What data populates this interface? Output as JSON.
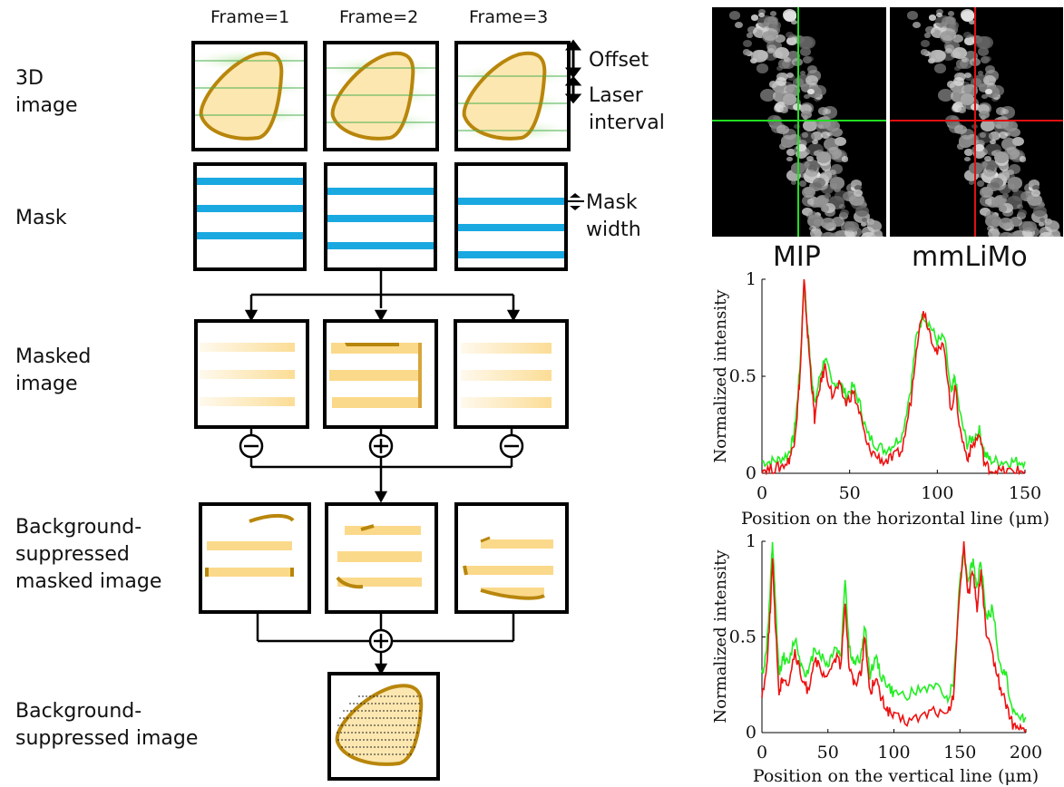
{
  "frames": [
    "Frame=1",
    "Frame=2",
    "Frame=3"
  ],
  "rows": {
    "image3d": [
      "3D",
      "image"
    ],
    "mask": "Mask",
    "masked": [
      "Masked",
      "image"
    ],
    "bgsup_masked": [
      "Background-",
      "suppressed",
      "masked image"
    ],
    "bgsup": [
      "Background-",
      "suppressed image"
    ]
  },
  "annotations": {
    "offset": "Offset",
    "laser": [
      "Laser",
      "interval"
    ],
    "maskwidth": [
      "Mask",
      "width"
    ]
  },
  "operators": [
    "minus",
    "plus",
    "minus",
    "plus"
  ],
  "micrographs": [
    {
      "label": "MIP",
      "crosshair_color": "#22dd22"
    },
    {
      "label": "mmLiMo",
      "crosshair_color": "#e01010"
    }
  ],
  "colors": {
    "mip": "#22ee22",
    "mmlimo": "#ee1111",
    "mask": "#1aa8e0",
    "shape_edge": "#b8860b",
    "shape_fill": "#fbd98a"
  },
  "chart_data": [
    {
      "type": "line",
      "xlabel": "Position on the horizontal line (μm)",
      "ylabel": "Normalized intensity",
      "xlim": [
        0,
        150
      ],
      "ylim": [
        0,
        1
      ],
      "xticks": [
        "0",
        "50",
        "100",
        "150"
      ],
      "yticks": [
        "0",
        "0.5",
        "1"
      ],
      "x": [
        0,
        5,
        10,
        15,
        18,
        20,
        22,
        24,
        26,
        28,
        30,
        33,
        36,
        40,
        44,
        48,
        52,
        56,
        60,
        65,
        70,
        75,
        80,
        85,
        88,
        92,
        96,
        100,
        104,
        108,
        110,
        113,
        117,
        120,
        124,
        127,
        130,
        135,
        140,
        145,
        150
      ],
      "series": [
        {
          "name": "MIP",
          "color": "#22ee22",
          "values": [
            0.06,
            0.06,
            0.07,
            0.1,
            0.18,
            0.35,
            0.6,
            0.98,
            0.75,
            0.55,
            0.35,
            0.5,
            0.6,
            0.45,
            0.48,
            0.4,
            0.45,
            0.35,
            0.2,
            0.15,
            0.12,
            0.15,
            0.2,
            0.45,
            0.7,
            0.82,
            0.76,
            0.68,
            0.7,
            0.4,
            0.5,
            0.3,
            0.15,
            0.18,
            0.22,
            0.1,
            0.07,
            0.06,
            0.06,
            0.06,
            0.06
          ]
        },
        {
          "name": "mmLiMo",
          "color": "#ee1111",
          "values": [
            0.02,
            0.02,
            0.03,
            0.06,
            0.14,
            0.3,
            0.55,
            1.0,
            0.72,
            0.5,
            0.28,
            0.45,
            0.55,
            0.4,
            0.45,
            0.36,
            0.42,
            0.3,
            0.14,
            0.09,
            0.06,
            0.08,
            0.12,
            0.38,
            0.65,
            0.85,
            0.72,
            0.62,
            0.66,
            0.3,
            0.46,
            0.22,
            0.08,
            0.14,
            0.2,
            0.05,
            0.02,
            0.01,
            0.01,
            0.01,
            0.01
          ]
        }
      ]
    },
    {
      "type": "line",
      "xlabel": "Position on the vertical line (μm)",
      "ylabel": "Normalized intensity",
      "xlim": [
        0,
        200
      ],
      "ylim": [
        0,
        1
      ],
      "xticks": [
        "0",
        "50",
        "100",
        "150",
        "200"
      ],
      "yticks": [
        "0",
        "0.5",
        "1"
      ],
      "x": [
        0,
        3,
        6,
        8,
        10,
        13,
        16,
        20,
        25,
        30,
        35,
        40,
        45,
        50,
        55,
        60,
        63,
        66,
        70,
        75,
        78,
        82,
        86,
        90,
        95,
        100,
        110,
        120,
        130,
        140,
        145,
        150,
        153,
        156,
        160,
        163,
        166,
        170,
        175,
        180,
        185,
        190,
        195,
        200
      ],
      "series": [
        {
          "name": "MIP",
          "color": "#22ee22",
          "values": [
            0.3,
            0.4,
            0.7,
            1.0,
            0.7,
            0.3,
            0.4,
            0.35,
            0.5,
            0.35,
            0.3,
            0.45,
            0.4,
            0.35,
            0.45,
            0.4,
            0.82,
            0.45,
            0.35,
            0.4,
            0.55,
            0.3,
            0.4,
            0.3,
            0.25,
            0.2,
            0.2,
            0.22,
            0.25,
            0.18,
            0.25,
            0.8,
            0.95,
            0.8,
            0.9,
            0.75,
            0.9,
            0.6,
            0.65,
            0.35,
            0.3,
            0.1,
            0.08,
            0.08
          ]
        },
        {
          "name": "mmLiMo",
          "color": "#ee1111",
          "values": [
            0.2,
            0.3,
            0.6,
            0.9,
            0.6,
            0.2,
            0.3,
            0.25,
            0.42,
            0.28,
            0.22,
            0.4,
            0.3,
            0.28,
            0.4,
            0.35,
            0.7,
            0.35,
            0.25,
            0.32,
            0.5,
            0.2,
            0.3,
            0.18,
            0.12,
            0.08,
            0.06,
            0.08,
            0.12,
            0.08,
            0.18,
            0.75,
            1.0,
            0.7,
            0.85,
            0.65,
            0.85,
            0.5,
            0.4,
            0.25,
            0.15,
            0.04,
            0.02,
            0.01
          ]
        }
      ]
    }
  ]
}
